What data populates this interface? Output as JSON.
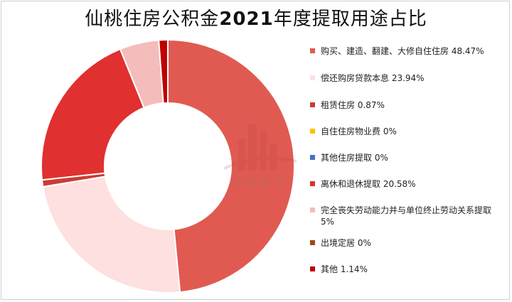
{
  "title_prefix": "仙桃住房公积金",
  "title_year": "2021",
  "title_suffix": "年度提取用途占比",
  "watermark_text": "仙桃楼市",
  "chart_data": {
    "type": "pie",
    "donut": true,
    "title": "仙桃住房公积金2021年度提取用途占比",
    "legend_position": "right",
    "slices": [
      {
        "name": "购买、建造、翻建、大修自住住房",
        "label": "购买、建造、翻建、大修自住住房 48.47%",
        "value": 48.47,
        "color": "#e05a52"
      },
      {
        "name": "偿还购房贷款本息",
        "label": "偿还购房贷款本息 23.94%",
        "value": 23.94,
        "color": "#fde0df"
      },
      {
        "name": "租赁住房",
        "label": "租赁住房 0.87%",
        "value": 0.87,
        "color": "#cc3a35"
      },
      {
        "name": "自住住房物业费",
        "label": "自住住房物业费 0%",
        "value": 0,
        "color": "#ffc000"
      },
      {
        "name": "其他住房提取",
        "label": "其他住房提取 0%",
        "value": 0,
        "color": "#4472c4"
      },
      {
        "name": "离休和退休提取",
        "label": "离休和退休提取 20.58%",
        "value": 20.58,
        "color": "#e03030"
      },
      {
        "name": "完全丧失劳动能力并与单位终止劳动关系提取",
        "label": "完全丧失劳动能力并与单位终止劳动关系提取 5%",
        "value": 5,
        "color": "#f5bcbc"
      },
      {
        "name": "出境定居",
        "label": "出境定居 0%",
        "value": 0,
        "color": "#9e480e"
      },
      {
        "name": "其他",
        "label": "其他 1.14%",
        "value": 1.14,
        "color": "#c00000"
      }
    ]
  }
}
